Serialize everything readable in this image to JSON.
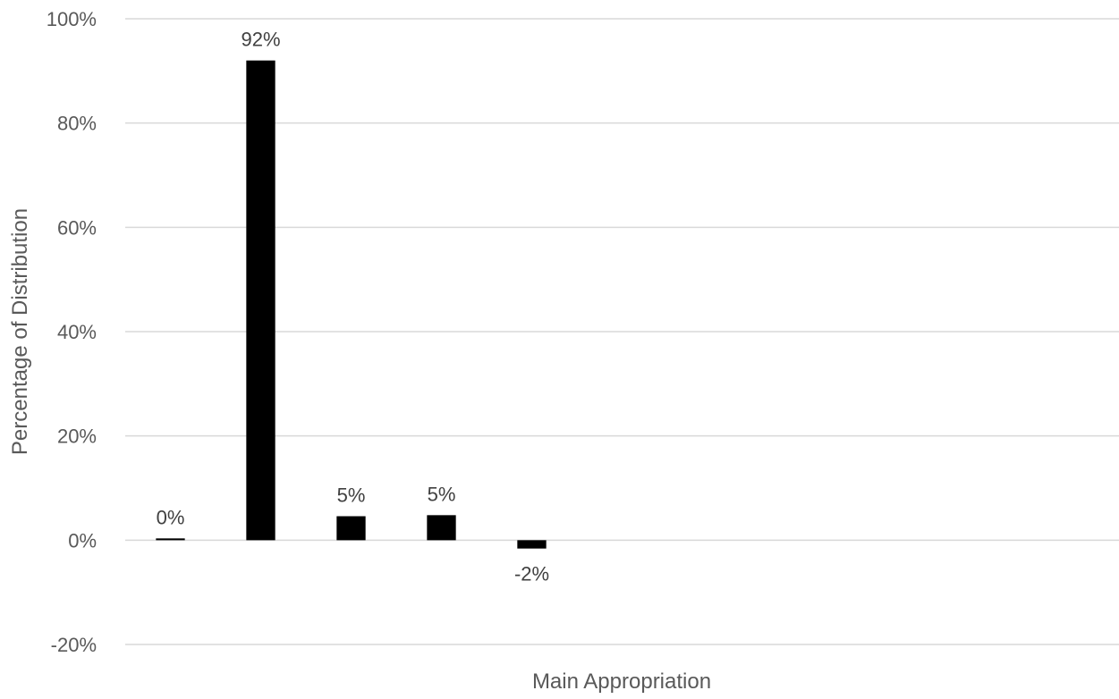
{
  "chart_data": {
    "type": "bar",
    "title": "",
    "xlabel": "Main Appropriation",
    "ylabel": "Percentage of Distribution",
    "ylim": [
      -20,
      100
    ],
    "yticks": [
      -20,
      0,
      20,
      40,
      60,
      80,
      100
    ],
    "ytick_labels": [
      "-20%",
      "0%",
      "20%",
      "40%",
      "60%",
      "80%",
      "100%"
    ],
    "grid": true,
    "legend": "none",
    "bar_color": "#000000",
    "gridline_color": "#d9d9d9",
    "values": [
      0.2,
      92,
      4.6,
      4.8,
      -1.6
    ],
    "data_labels": [
      "0%",
      "92%",
      "5%",
      "5%",
      "-2%"
    ],
    "category_slots": 11
  }
}
